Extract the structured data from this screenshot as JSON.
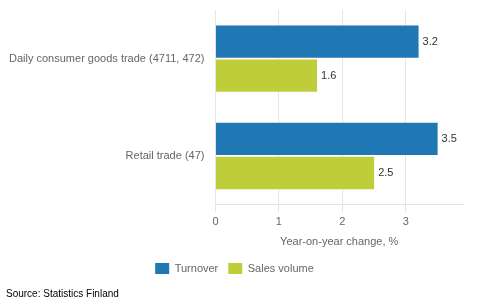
{
  "chart_data": {
    "type": "bar",
    "orientation": "horizontal",
    "categories": [
      "Daily consumer goods trade (4711, 472)",
      "Retail trade (47)"
    ],
    "series": [
      {
        "name": "Turnover",
        "color": "#1F77B4",
        "values": [
          3.2,
          3.5
        ]
      },
      {
        "name": "Sales volume",
        "color": "#BFCD3B",
        "values": [
          1.6,
          2.5
        ]
      }
    ],
    "xlabel": "Year-on-year change, %",
    "xlim": [
      0,
      3.9
    ],
    "xticks": [
      0,
      1,
      2,
      3
    ],
    "grid": true,
    "legend": "bottom",
    "data_labels": true,
    "source": "Source: Statistics Finland"
  }
}
